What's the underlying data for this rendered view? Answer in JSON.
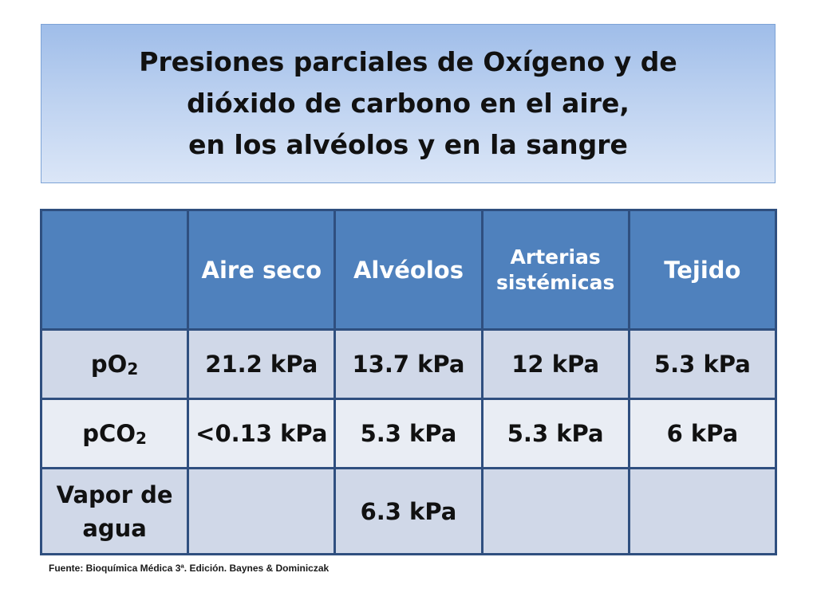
{
  "title": {
    "lines": [
      "Presiones parciales de Oxígeno y de",
      "dióxido de carbono en el aire,",
      "en los alvéolos y en la sangre"
    ]
  },
  "table": {
    "headers": [
      "",
      "Aire seco",
      "Alvéolos",
      "Arterias sistémicas",
      "Tejido"
    ],
    "header_lines": {
      "arterias": [
        "Arterias",
        "sistémicas"
      ]
    },
    "rows": [
      {
        "label_base": "pO",
        "label_sub": "2",
        "cells": [
          "21.2 kPa",
          "13.7 kPa",
          "12 kPa",
          "5.3 kPa"
        ]
      },
      {
        "label_base": "pCO",
        "label_sub": "2",
        "cells": [
          "<0.13 kPa",
          "5.3 kPa",
          "5.3 kPa",
          "6 kPa"
        ]
      },
      {
        "label_lines": [
          "Vapor de",
          "agua"
        ],
        "cells": [
          "",
          "6.3 kPa",
          "",
          ""
        ]
      }
    ]
  },
  "source": "Fuente: Bioquímica Médica 3ª. Edición.  Baynes & Dominiczak",
  "colors": {
    "header_fill": "#4f81bd",
    "row_dark": "#d0d8e8",
    "row_light": "#e9edf4",
    "border": "#2f4f7f",
    "title_box": "#bcd1f0"
  }
}
